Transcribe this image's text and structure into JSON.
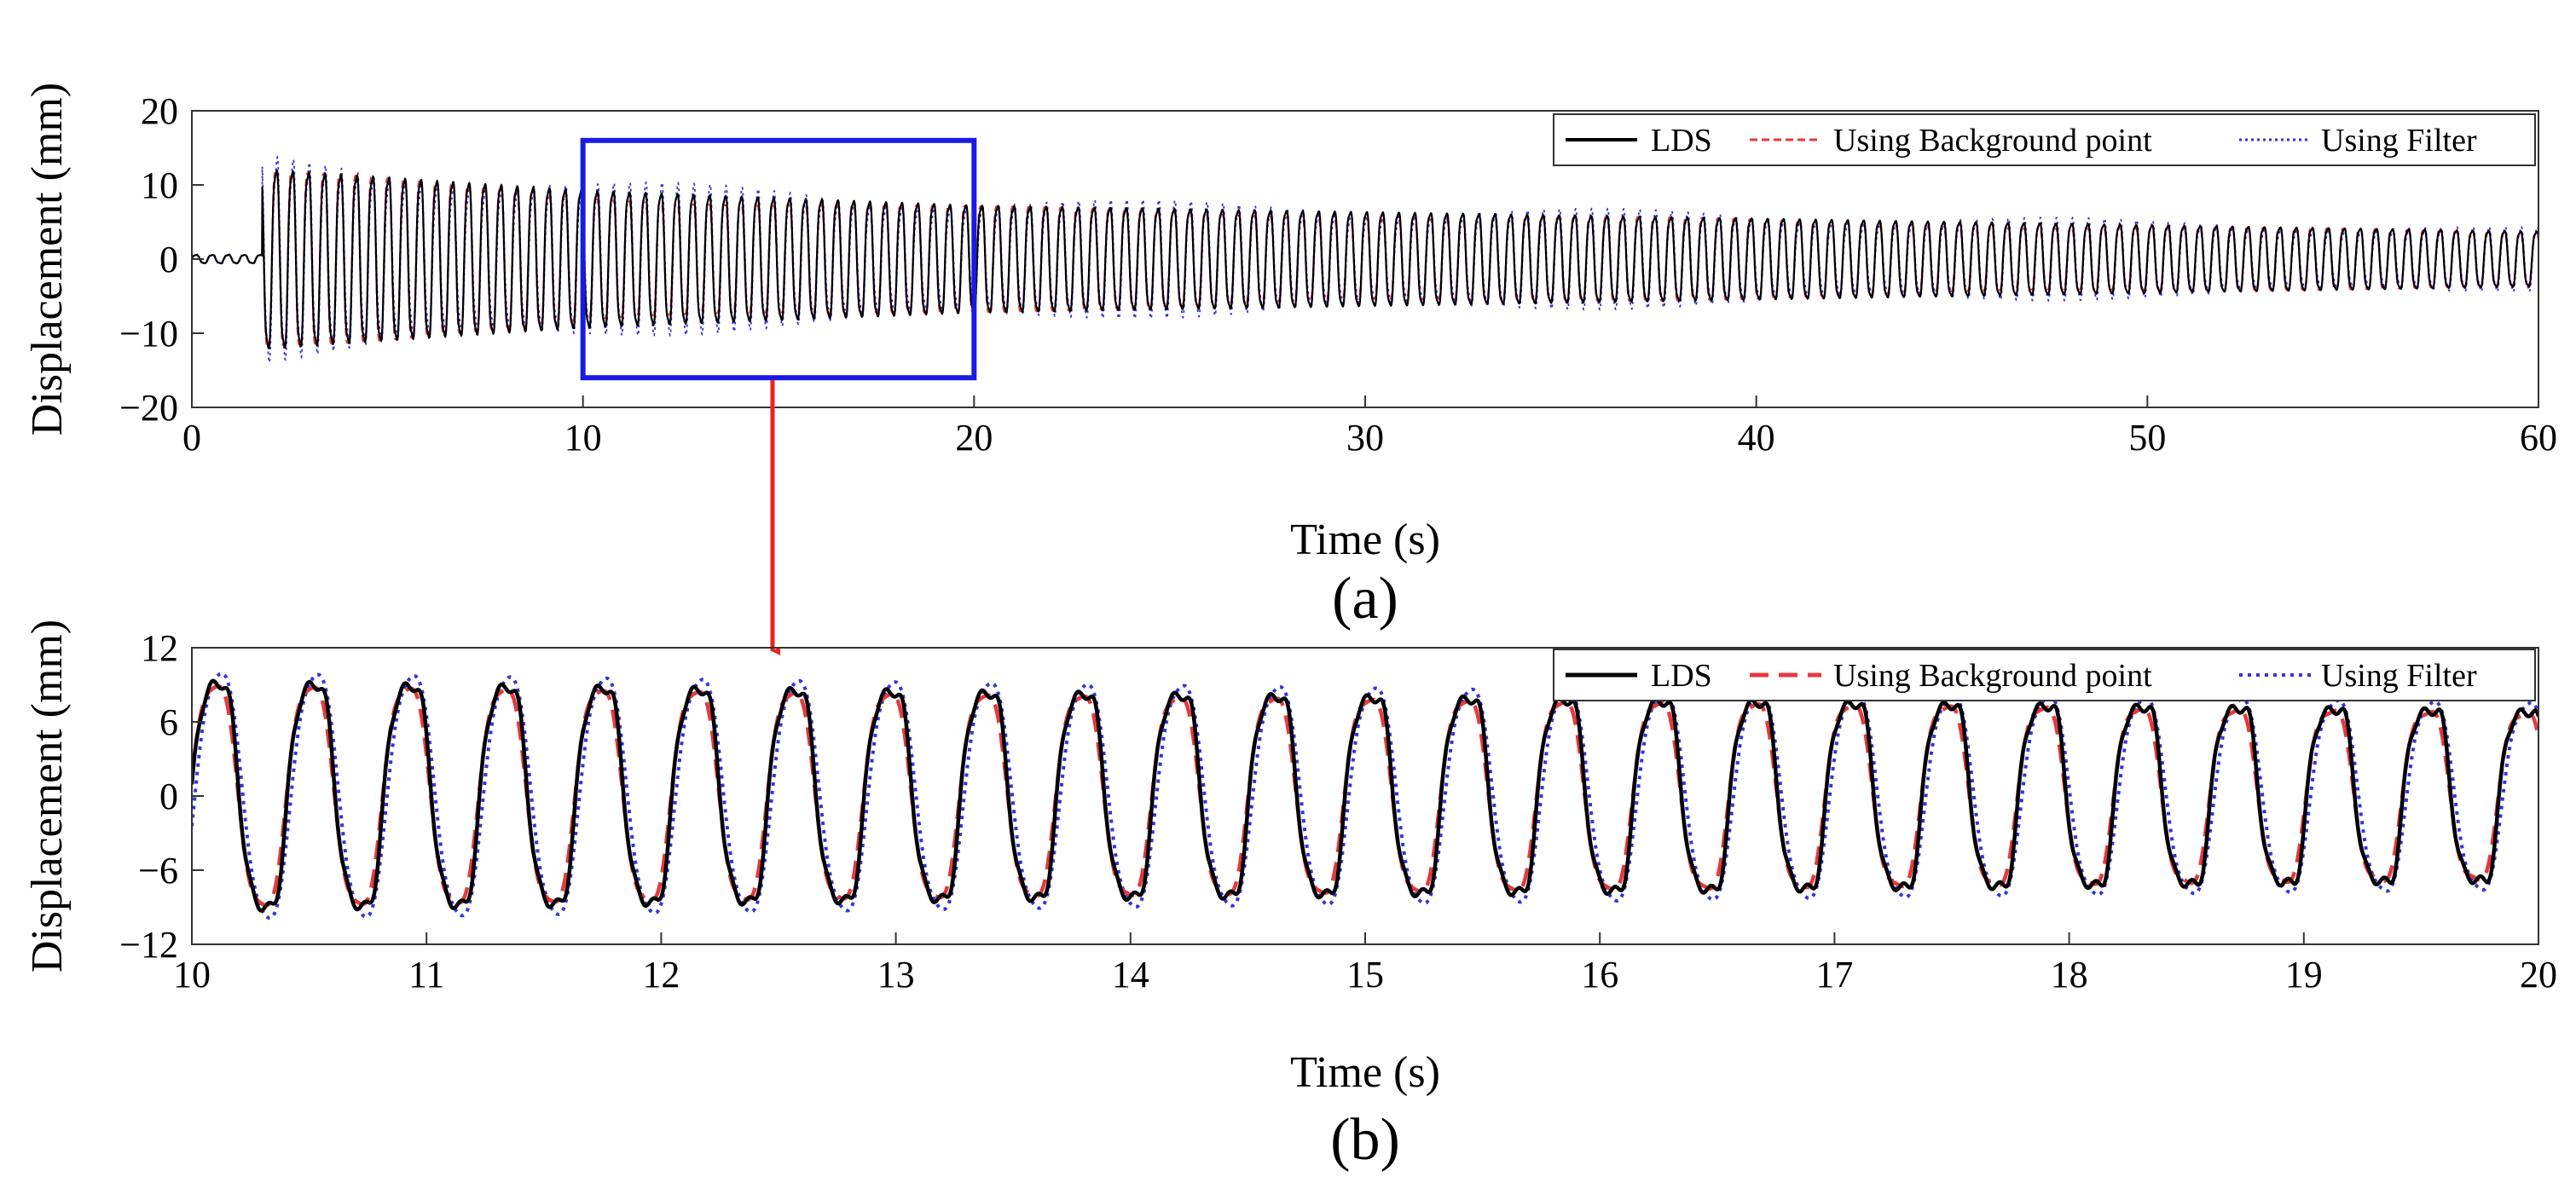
{
  "figure": {
    "panels": [
      "(a)",
      "(b)"
    ]
  },
  "chart_data": [
    {
      "type": "line",
      "panel_label": "(a)",
      "title": "",
      "xlabel": "Time (s)",
      "ylabel": "Displacement (mm)",
      "xlim": [
        0,
        60
      ],
      "ylim": [
        -20,
        20
      ],
      "xticks": [
        0,
        10,
        20,
        30,
        40,
        50,
        60
      ],
      "yticks": [
        -20,
        -10,
        0,
        10,
        20
      ],
      "grid": false,
      "legend_position": "top-right",
      "legend": [
        "LDS",
        "Using Background point",
        "Using Filter"
      ],
      "signal": {
        "pre_excitation_end_s": 1.8,
        "pre_excitation_amplitude_mm": 0.6,
        "frequency_hz": 2.44,
        "peak_amplitude_at_2s_mm": 13,
        "amplitude_at_10s_mm": 10,
        "amplitude_at_20s_mm": 7.8,
        "amplitude_at_60s_mm": 4
      },
      "series": [
        {
          "name": "LDS",
          "color": "#000000",
          "style": "solid"
        },
        {
          "name": "Using Background point",
          "color": "#e8383d",
          "style": "dashed"
        },
        {
          "name": "Using Filter",
          "color": "#3333dd",
          "style": "dotted"
        }
      ],
      "zoom_box": {
        "x_range": [
          10,
          20
        ],
        "y_range": [
          -16,
          16
        ],
        "color": "#1a1ae6"
      }
    },
    {
      "type": "line",
      "panel_label": "(b)",
      "title": "",
      "xlabel": "Time (s)",
      "ylabel": "Displacement (mm)",
      "xlim": [
        10,
        20
      ],
      "ylim": [
        -12,
        12
      ],
      "xticks": [
        10,
        11,
        12,
        13,
        14,
        15,
        16,
        17,
        18,
        19,
        20
      ],
      "yticks": [
        -12,
        -6,
        0,
        6,
        12
      ],
      "grid": false,
      "legend_position": "top-right",
      "legend": [
        "LDS",
        "Using Background point",
        "Using Filter"
      ],
      "signal": {
        "frequency_hz": 2.44,
        "cycles": 24,
        "amplitude_at_10s_mm": 10.2,
        "amplitude_at_20s_mm": 7.8
      },
      "series": [
        {
          "name": "LDS",
          "color": "#000000",
          "style": "solid"
        },
        {
          "name": "Using Background point",
          "color": "#e8383d",
          "style": "dashed"
        },
        {
          "name": "Using Filter",
          "color": "#3333dd",
          "style": "dotted"
        }
      ]
    }
  ]
}
